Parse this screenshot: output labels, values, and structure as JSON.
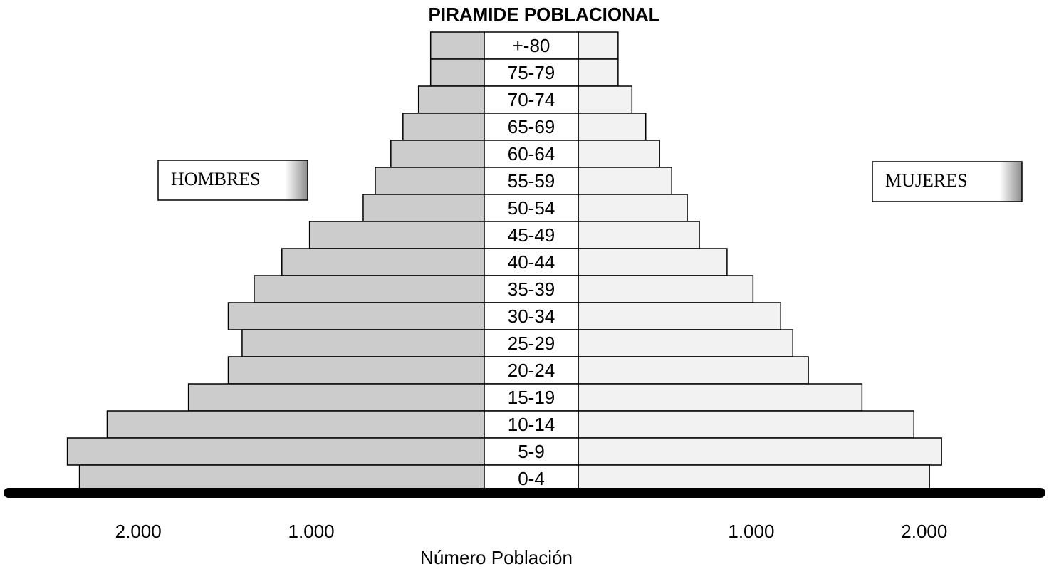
{
  "chart_data": {
    "type": "pyramid",
    "title": "PIRAMIDE POBLACIONAL",
    "xlabel": "Número Población",
    "categories": [
      "+-80",
      "75-79",
      "70-74",
      "65-69",
      "60-64",
      "55-59",
      "50-54",
      "45-49",
      "40-44",
      "35-39",
      "30-34",
      "25-29",
      "20-24",
      "15-19",
      "10-14",
      "5-9",
      "0-4"
    ],
    "series": [
      {
        "name": "HOMBRES",
        "color": "#cccccc",
        "values": [
          310,
          310,
          380,
          470,
          540,
          630,
          700,
          1010,
          1170,
          1330,
          1480,
          1400,
          1480,
          1710,
          2180,
          2410,
          2340
        ]
      },
      {
        "name": "MUJERES",
        "color": "#f2f2f2",
        "values": [
          230,
          230,
          310,
          390,
          470,
          540,
          630,
          700,
          860,
          1010,
          1170,
          1240,
          1330,
          1640,
          1940,
          2100,
          2030
        ]
      }
    ],
    "xlim": [
      0,
      2750
    ],
    "xticks": [
      {
        "value": 1000,
        "label": "1.000"
      },
      {
        "value": 2000,
        "label": "2.000"
      }
    ]
  }
}
